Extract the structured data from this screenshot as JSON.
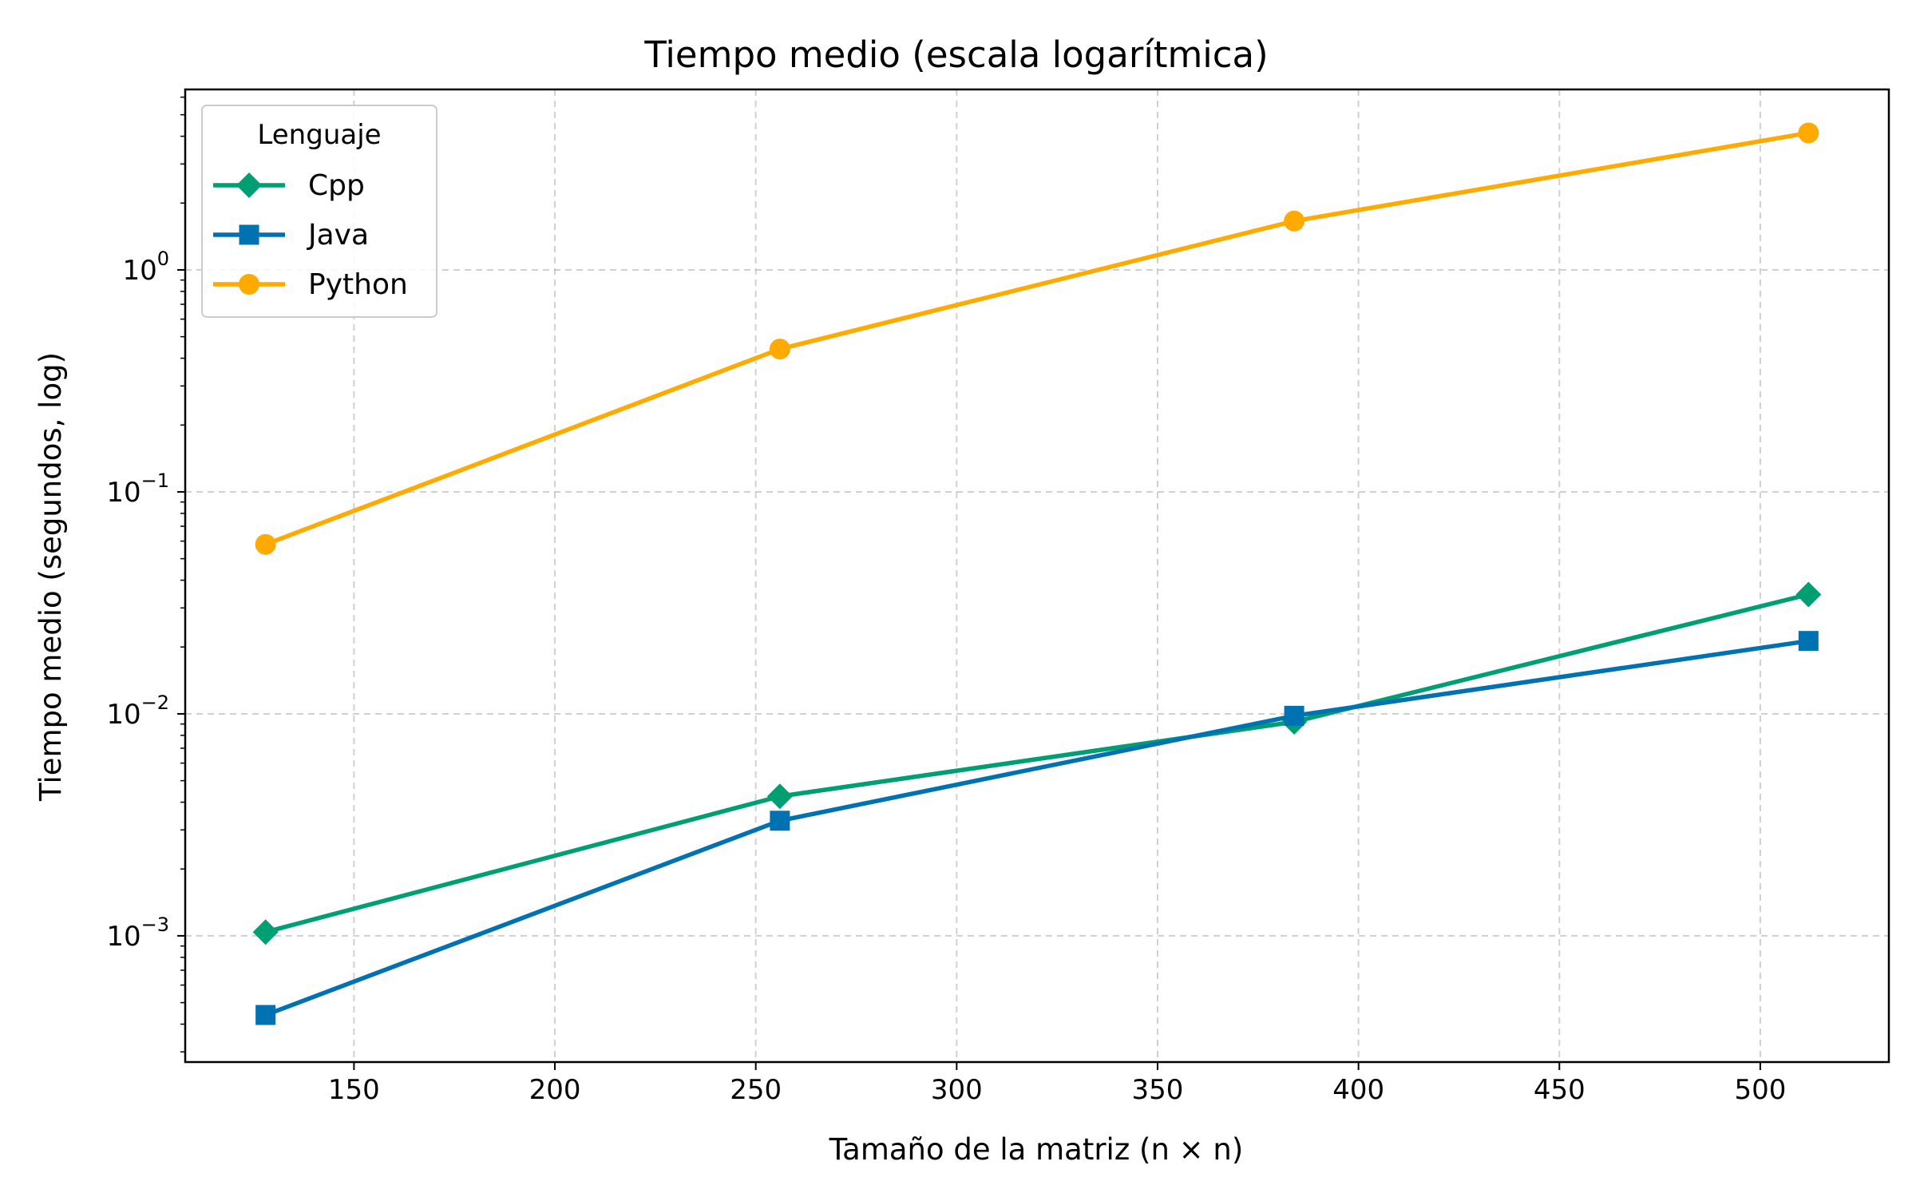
{
  "chart_data": {
    "type": "line",
    "title": "Tiempo medio (escala logarítmica)",
    "xlabel": "Tamaño de la matriz (n × n)",
    "ylabel": "Tiempo medio (segundos, log)",
    "x": [
      128,
      256,
      384,
      512
    ],
    "xlim": [
      108,
      532
    ],
    "ylim": [
      0.00027,
      6.5
    ],
    "yscale": "log",
    "xticks": [
      150,
      200,
      250,
      300,
      350,
      400,
      450,
      500
    ],
    "yticks": [
      0.001,
      0.01,
      0.1,
      1
    ],
    "ytick_labels": [
      {
        "base": "10",
        "exp": "−3"
      },
      {
        "base": "10",
        "exp": "−2"
      },
      {
        "base": "10",
        "exp": "−1"
      },
      {
        "base": "10",
        "exp": "0"
      }
    ],
    "grid": true,
    "legend": {
      "title": "Lenguaje",
      "placement": "upper-left"
    },
    "series": [
      {
        "name": "Cpp",
        "color": "#009E73",
        "marker": "diamond",
        "values": [
          0.00104,
          0.00425,
          0.0092,
          0.0345
        ]
      },
      {
        "name": "Java",
        "color": "#0072B2",
        "marker": "square",
        "values": [
          0.00044,
          0.0033,
          0.0098,
          0.0213
        ]
      },
      {
        "name": "Python",
        "color": "#FFAA00",
        "marker": "circle",
        "values": [
          0.058,
          0.44,
          1.66,
          4.14
        ]
      }
    ]
  }
}
